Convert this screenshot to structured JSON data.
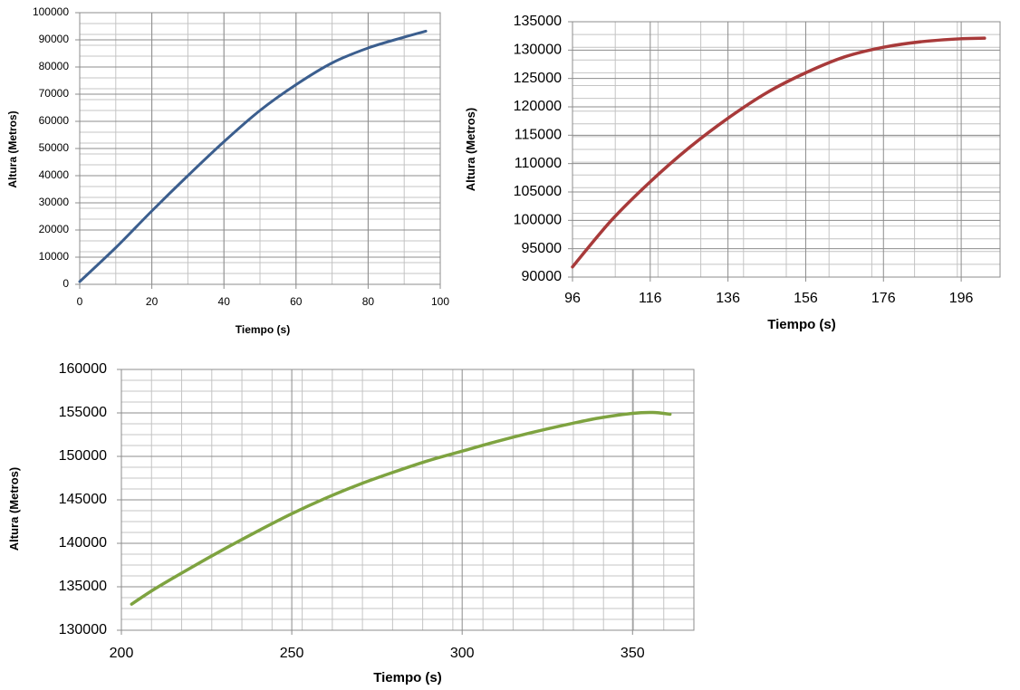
{
  "chart_data": [
    {
      "type": "line",
      "xlabel": "Tiempo (s)",
      "ylabel": "Altura (Metros)",
      "xlim": [
        0,
        100
      ],
      "ylim": [
        0,
        100000
      ],
      "xticks": [
        0,
        20,
        40,
        60,
        80,
        100
      ],
      "xtick_labels": [
        "0",
        "20",
        "40",
        "60",
        "80",
        "100"
      ],
      "yticks": [
        0,
        10000,
        20000,
        30000,
        40000,
        50000,
        60000,
        70000,
        80000,
        90000,
        100000
      ],
      "ytick_labels": [
        "0",
        "10000",
        "20000",
        "30000",
        "40000",
        "50000",
        "60000",
        "70000",
        "80000",
        "90000",
        "100000"
      ],
      "grid": true,
      "color": "#3b5e8e",
      "series": [
        {
          "x": [
            0,
            10,
            20,
            30,
            40,
            50,
            60,
            70,
            80,
            90,
            96
          ],
          "values": [
            1000,
            13500,
            27000,
            40000,
            52500,
            64000,
            73500,
            81500,
            87000,
            91000,
            93200
          ]
        }
      ]
    },
    {
      "type": "line",
      "xlabel": "Tiempo (s)",
      "ylabel": "Altura (Metros)",
      "xlim": [
        96,
        206
      ],
      "ylim": [
        90000,
        135000
      ],
      "xticks": [
        96,
        116,
        136,
        156,
        176,
        196
      ],
      "xtick_labels": [
        "96",
        "116",
        "136",
        "156",
        "176",
        "196"
      ],
      "yticks": [
        90000,
        95000,
        100000,
        105000,
        110000,
        115000,
        120000,
        125000,
        130000,
        135000
      ],
      "ytick_labels": [
        "90000",
        "95000",
        "100000",
        "105000",
        "110000",
        "115000",
        "120000",
        "125000",
        "130000",
        "135000"
      ],
      "grid": true,
      "color": "#a83a3a",
      "series": [
        {
          "x": [
            96,
            106,
            116,
            126,
            136,
            146,
            156,
            166,
            176,
            186,
            196,
            202
          ],
          "values": [
            91800,
            100000,
            106800,
            112800,
            118000,
            122500,
            126000,
            128800,
            130500,
            131500,
            132000,
            132100
          ]
        }
      ]
    },
    {
      "type": "line",
      "xlabel": "Tiempo (s)",
      "ylabel": "Altura (Metros)",
      "xlim": [
        200,
        368
      ],
      "ylim": [
        130000,
        160000
      ],
      "xticks": [
        200,
        250,
        300,
        350
      ],
      "xtick_labels": [
        "200",
        "250",
        "300",
        "350"
      ],
      "yticks": [
        130000,
        135000,
        140000,
        145000,
        150000,
        155000,
        160000
      ],
      "ytick_labels": [
        "130000",
        "135000",
        "140000",
        "145000",
        "150000",
        "155000",
        "160000"
      ],
      "grid": true,
      "color": "#7ea340",
      "series": [
        {
          "x": [
            203,
            210,
            220,
            230,
            240,
            250,
            260,
            270,
            280,
            290,
            300,
            310,
            320,
            330,
            340,
            350,
            356,
            361
          ],
          "values": [
            133000,
            134800,
            137100,
            139300,
            141400,
            143400,
            145200,
            146800,
            148200,
            149500,
            150600,
            151700,
            152700,
            153600,
            154400,
            154950,
            155050,
            154850
          ]
        }
      ]
    }
  ]
}
